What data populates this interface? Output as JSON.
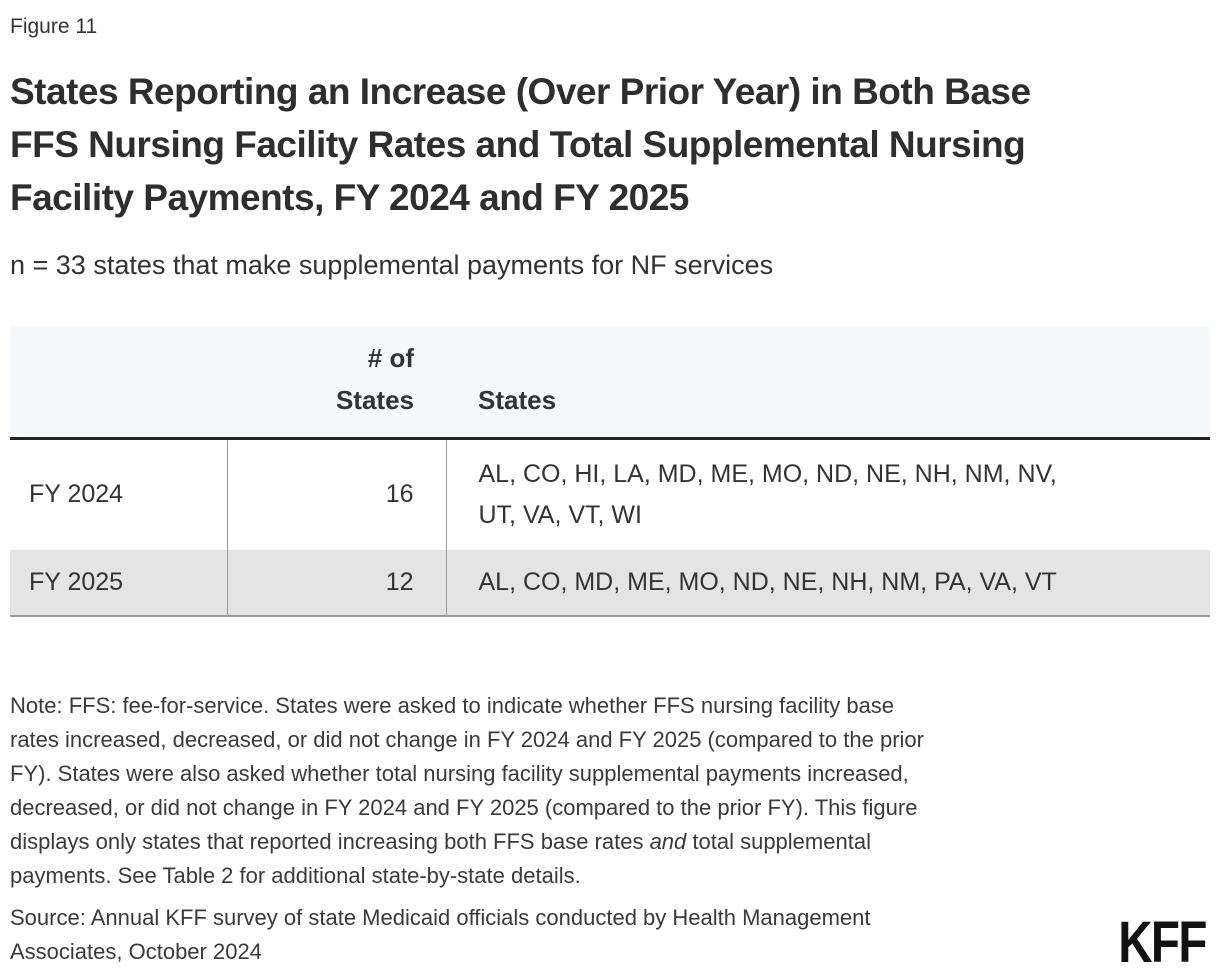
{
  "figure_label": "Figure 11",
  "title": "States Reporting an Increase (Over Prior Year) in Both Base\nFFS Nursing Facility Rates and Total Supplemental Nursing\nFacility Payments, FY 2024 and FY 2025",
  "subtitle": "n = 33 states that make supplemental payments for NF services",
  "chart_data": {
    "type": "table",
    "title": "States Reporting an Increase (Over Prior Year) in Both Base FFS Nursing Facility Rates and Total Supplemental Nursing Facility Payments, FY 2024 and FY 2025",
    "subtitle": "n = 33 states that make supplemental payments for NF services",
    "columns": [
      "",
      "# of States",
      "States"
    ],
    "rows": [
      [
        "FY 2024",
        16,
        "AL, CO, HI, LA, MD, ME, MO, ND, NE, NH, NM, NV, UT, VA, VT, WI"
      ],
      [
        "FY 2025",
        12,
        "AL, CO, MD, ME, MO, ND, NE, NH, NM, PA, VA, VT"
      ]
    ]
  },
  "table": {
    "columns": {
      "row_header": "",
      "num_states": "# of\nStates",
      "states": "States"
    },
    "rows": [
      {
        "label": "FY 2024",
        "count": "16",
        "states": "AL, CO, HI, LA, MD, ME, MO, ND, NE, NH, NM, NV,\nUT, VA, VT, WI"
      },
      {
        "label": "FY 2025",
        "count": "12",
        "states": "AL, CO, MD, ME, MO, ND, NE, NH, NM, PA, VA, VT"
      }
    ]
  },
  "note": {
    "before_italic": "Note: FFS: fee-for-service. States were asked to indicate whether FFS nursing facility base\nrates increased, decreased, or did not change in FY 2024 and FY 2025 (compared to the prior\nFY). States were also asked whether total nursing facility supplemental payments increased,\ndecreased, or did not change in FY 2024 and FY 2025 (compared to the prior FY). This figure\ndisplays only states that reported increasing both FFS base rates ",
    "italic": "and",
    "after_italic": " total supplemental\npayments. See Table 2 for additional state-by-state details."
  },
  "source": "Source: Annual KFF survey of state Medicaid officials conducted by Health Management\nAssociates, October 2024",
  "logo_text": "KFF",
  "colors": {
    "header_bg": "#f4fafc",
    "alt_row_bg": "#e4e4e4",
    "header_rule": "#222222",
    "grid_rule": "#999999",
    "text": "#333333",
    "logo": "#121212"
  }
}
